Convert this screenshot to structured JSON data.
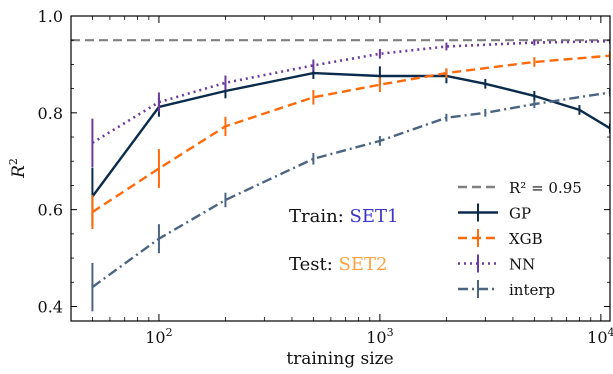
{
  "chart_data": {
    "type": "line",
    "title": "",
    "xlabel": "training size",
    "ylabel": "R",
    "ylabel_sup": "2",
    "xscale": "log",
    "xlim": [
      40,
      11000
    ],
    "ylim": [
      0.37,
      1.0
    ],
    "grid": false,
    "legend_placement": "bottom-right",
    "x_ticks": [
      {
        "value": 100,
        "base": "10",
        "exp": "2"
      },
      {
        "value": 1000,
        "base": "10",
        "exp": "3"
      },
      {
        "value": 10000,
        "base": "10",
        "exp": "4"
      }
    ],
    "y_ticks": [
      {
        "value": 0.4,
        "label": "0.4"
      },
      {
        "value": 0.6,
        "label": "0.6"
      },
      {
        "value": 0.8,
        "label": "0.8"
      },
      {
        "value": 1.0,
        "label": "1.0"
      }
    ],
    "reference_line": {
      "y": 0.95,
      "color": "#808080",
      "legend_label": "R² = 0.95"
    },
    "series": [
      {
        "name": "GP",
        "color": "#0b2b4c",
        "dash": "solid",
        "x": [
          50,
          100,
          200,
          500,
          1000,
          2000,
          3000,
          5000,
          8000,
          11000
        ],
        "y": [
          0.627,
          0.812,
          0.845,
          0.882,
          0.876,
          0.876,
          0.86,
          0.835,
          0.806,
          0.768
        ],
        "err": [
          0.06,
          0.02,
          0.015,
          0.012,
          0.02,
          0.015,
          0.01,
          0.01,
          0.01,
          0.01
        ]
      },
      {
        "name": "XGB",
        "color": "#ff6a0a",
        "dash": "dashed",
        "x": [
          50,
          100,
          200,
          500,
          1000,
          2000,
          5000,
          11000
        ],
        "y": [
          0.595,
          0.685,
          0.772,
          0.832,
          0.858,
          0.882,
          0.905,
          0.918
        ],
        "err": [
          0.035,
          0.04,
          0.02,
          0.015,
          0.015,
          0.01,
          0.01,
          0.01
        ]
      },
      {
        "name": "NN",
        "color": "#6c3aa0",
        "dash": "dotted",
        "x": [
          50,
          100,
          200,
          500,
          1000,
          2000,
          5000,
          11000
        ],
        "y": [
          0.738,
          0.822,
          0.862,
          0.898,
          0.922,
          0.937,
          0.945,
          0.948
        ],
        "err": [
          0.05,
          0.02,
          0.015,
          0.012,
          0.01,
          0.008,
          0.006,
          0.005
        ]
      },
      {
        "name": "interp",
        "color": "#4a6482",
        "dash": "dashdot",
        "x": [
          50,
          100,
          200,
          500,
          1000,
          2000,
          3000,
          5000,
          11000
        ],
        "y": [
          0.44,
          0.54,
          0.62,
          0.705,
          0.742,
          0.79,
          0.8,
          0.818,
          0.842
        ],
        "err": [
          0.05,
          0.03,
          0.015,
          0.012,
          0.01,
          0.008,
          0.008,
          0.008,
          0.008
        ]
      }
    ],
    "annotations": [
      {
        "prefix": "Train: ",
        "value": "SET1",
        "value_color": "#3a34c8"
      },
      {
        "prefix": "Test: ",
        "value": "SET2",
        "value_color": "#ffa040"
      }
    ]
  }
}
